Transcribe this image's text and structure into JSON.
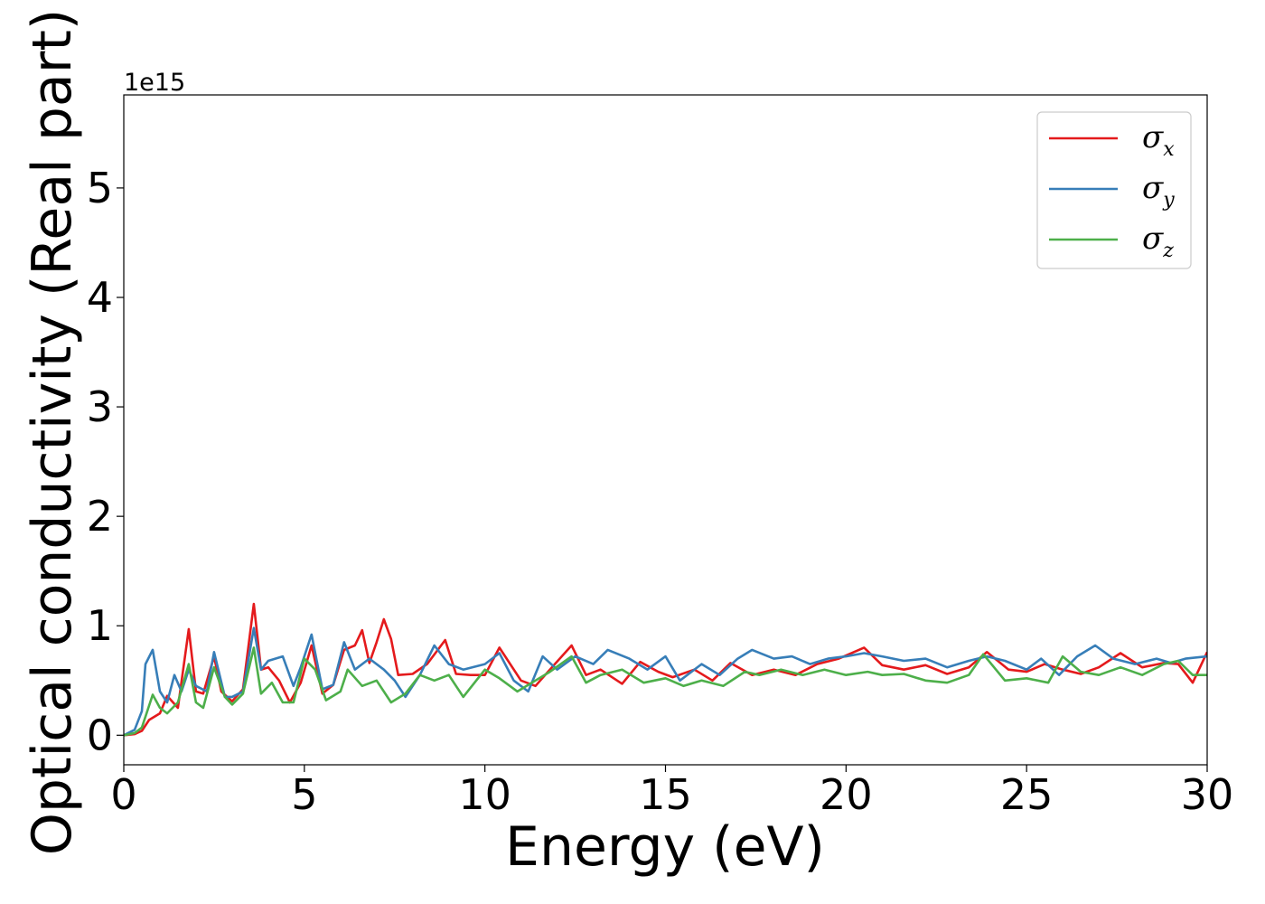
{
  "chart_data": {
    "type": "line",
    "xlabel": "Energy (eV)",
    "ylabel": "Optical conductivity (Real part)",
    "y_offset_text": "1e15",
    "y_scale": 1000000000000000.0,
    "xlim": [
      0,
      30
    ],
    "ylim": [
      -0.27,
      5.85
    ],
    "x_ticks": [
      0,
      5,
      10,
      15,
      20,
      25,
      30
    ],
    "x_tick_labels": [
      "0",
      "5",
      "10",
      "15",
      "20",
      "25",
      "30"
    ],
    "y_ticks": [
      0,
      1,
      2,
      3,
      4,
      5
    ],
    "y_tick_labels": [
      "0",
      "1",
      "2",
      "3",
      "4",
      "5"
    ],
    "grid": false,
    "legend": {
      "placement": "top-right"
    },
    "series": [
      {
        "name": "σx",
        "symbol": "σ",
        "subscript": "x",
        "color": "#e41a1c",
        "points": [
          [
            0,
            0
          ],
          [
            0.3,
            0.01
          ],
          [
            0.5,
            0.04
          ],
          [
            0.7,
            0.14
          ],
          [
            1,
            0.2
          ],
          [
            1.2,
            0.36
          ],
          [
            1.5,
            0.25
          ],
          [
            1.8,
            0.97
          ],
          [
            2,
            0.4
          ],
          [
            2.2,
            0.38
          ],
          [
            2.5,
            0.72
          ],
          [
            2.7,
            0.4
          ],
          [
            3,
            0.31
          ],
          [
            3.3,
            0.42
          ],
          [
            3.6,
            1.2
          ],
          [
            3.8,
            0.6
          ],
          [
            4,
            0.62
          ],
          [
            4.3,
            0.5
          ],
          [
            4.6,
            0.3
          ],
          [
            4.9,
            0.48
          ],
          [
            5.2,
            0.82
          ],
          [
            5.5,
            0.38
          ],
          [
            5.8,
            0.46
          ],
          [
            6.1,
            0.78
          ],
          [
            6.4,
            0.82
          ],
          [
            6.6,
            0.96
          ],
          [
            6.8,
            0.66
          ],
          [
            7,
            0.85
          ],
          [
            7.2,
            1.06
          ],
          [
            7.4,
            0.88
          ],
          [
            7.6,
            0.55
          ],
          [
            8,
            0.56
          ],
          [
            8.4,
            0.65
          ],
          [
            8.9,
            0.87
          ],
          [
            9.2,
            0.56
          ],
          [
            9.6,
            0.55
          ],
          [
            10,
            0.55
          ],
          [
            10.4,
            0.8
          ],
          [
            11,
            0.5
          ],
          [
            11.4,
            0.45
          ],
          [
            11.8,
            0.6
          ],
          [
            12.4,
            0.82
          ],
          [
            12.8,
            0.55
          ],
          [
            13.2,
            0.6
          ],
          [
            13.8,
            0.47
          ],
          [
            14.3,
            0.67
          ],
          [
            14.8,
            0.58
          ],
          [
            15.2,
            0.53
          ],
          [
            15.8,
            0.6
          ],
          [
            16.3,
            0.5
          ],
          [
            16.8,
            0.66
          ],
          [
            17.4,
            0.55
          ],
          [
            18,
            0.6
          ],
          [
            18.6,
            0.55
          ],
          [
            19.2,
            0.65
          ],
          [
            19.8,
            0.7
          ],
          [
            20.5,
            0.8
          ],
          [
            21,
            0.64
          ],
          [
            21.6,
            0.6
          ],
          [
            22.2,
            0.64
          ],
          [
            22.8,
            0.56
          ],
          [
            23.4,
            0.62
          ],
          [
            23.9,
            0.76
          ],
          [
            24.5,
            0.6
          ],
          [
            25,
            0.58
          ],
          [
            25.5,
            0.65
          ],
          [
            26,
            0.6
          ],
          [
            26.5,
            0.56
          ],
          [
            27,
            0.62
          ],
          [
            27.6,
            0.75
          ],
          [
            28.2,
            0.62
          ],
          [
            28.8,
            0.66
          ],
          [
            29.2,
            0.65
          ],
          [
            29.6,
            0.48
          ],
          [
            30,
            0.76
          ]
        ]
      },
      {
        "name": "σy",
        "symbol": "σ",
        "subscript": "y",
        "color": "#377eb8",
        "points": [
          [
            0,
            0
          ],
          [
            0.3,
            0.05
          ],
          [
            0.5,
            0.22
          ],
          [
            0.6,
            0.65
          ],
          [
            0.8,
            0.78
          ],
          [
            1,
            0.4
          ],
          [
            1.2,
            0.3
          ],
          [
            1.4,
            0.55
          ],
          [
            1.6,
            0.4
          ],
          [
            1.8,
            0.6
          ],
          [
            2,
            0.45
          ],
          [
            2.3,
            0.4
          ],
          [
            2.5,
            0.76
          ],
          [
            2.8,
            0.35
          ],
          [
            3,
            0.35
          ],
          [
            3.3,
            0.4
          ],
          [
            3.6,
            0.98
          ],
          [
            3.8,
            0.6
          ],
          [
            4,
            0.68
          ],
          [
            4.4,
            0.72
          ],
          [
            4.7,
            0.45
          ],
          [
            4.9,
            0.62
          ],
          [
            5.2,
            0.92
          ],
          [
            5.5,
            0.42
          ],
          [
            5.8,
            0.46
          ],
          [
            6.1,
            0.85
          ],
          [
            6.4,
            0.6
          ],
          [
            6.8,
            0.7
          ],
          [
            7.2,
            0.6
          ],
          [
            7.5,
            0.5
          ],
          [
            7.8,
            0.35
          ],
          [
            8.2,
            0.55
          ],
          [
            8.6,
            0.82
          ],
          [
            9,
            0.65
          ],
          [
            9.4,
            0.6
          ],
          [
            10,
            0.65
          ],
          [
            10.4,
            0.75
          ],
          [
            10.8,
            0.5
          ],
          [
            11.2,
            0.4
          ],
          [
            11.6,
            0.72
          ],
          [
            12,
            0.6
          ],
          [
            12.5,
            0.72
          ],
          [
            13,
            0.65
          ],
          [
            13.4,
            0.78
          ],
          [
            14,
            0.7
          ],
          [
            14.5,
            0.6
          ],
          [
            15,
            0.72
          ],
          [
            15.4,
            0.5
          ],
          [
            16,
            0.65
          ],
          [
            16.5,
            0.55
          ],
          [
            17,
            0.7
          ],
          [
            17.4,
            0.78
          ],
          [
            18,
            0.7
          ],
          [
            18.5,
            0.72
          ],
          [
            19,
            0.65
          ],
          [
            19.5,
            0.7
          ],
          [
            20,
            0.72
          ],
          [
            20.5,
            0.75
          ],
          [
            21,
            0.72
          ],
          [
            21.6,
            0.68
          ],
          [
            22.2,
            0.7
          ],
          [
            22.8,
            0.62
          ],
          [
            23.4,
            0.68
          ],
          [
            23.9,
            0.72
          ],
          [
            24.4,
            0.68
          ],
          [
            25,
            0.6
          ],
          [
            25.4,
            0.7
          ],
          [
            25.9,
            0.55
          ],
          [
            26.4,
            0.72
          ],
          [
            26.9,
            0.82
          ],
          [
            27.4,
            0.7
          ],
          [
            28,
            0.65
          ],
          [
            28.6,
            0.7
          ],
          [
            29,
            0.66
          ],
          [
            29.4,
            0.7
          ],
          [
            30,
            0.72
          ]
        ]
      },
      {
        "name": "σz",
        "symbol": "σ",
        "subscript": "z",
        "color": "#4daf4a",
        "points": [
          [
            0,
            0
          ],
          [
            0.3,
            0.02
          ],
          [
            0.5,
            0.07
          ],
          [
            0.8,
            0.37
          ],
          [
            1,
            0.25
          ],
          [
            1.2,
            0.2
          ],
          [
            1.5,
            0.3
          ],
          [
            1.8,
            0.65
          ],
          [
            2,
            0.3
          ],
          [
            2.2,
            0.25
          ],
          [
            2.5,
            0.62
          ],
          [
            2.8,
            0.35
          ],
          [
            3,
            0.28
          ],
          [
            3.3,
            0.38
          ],
          [
            3.6,
            0.8
          ],
          [
            3.8,
            0.38
          ],
          [
            4.1,
            0.48
          ],
          [
            4.4,
            0.3
          ],
          [
            4.7,
            0.3
          ],
          [
            5,
            0.7
          ],
          [
            5.3,
            0.6
          ],
          [
            5.6,
            0.32
          ],
          [
            6,
            0.4
          ],
          [
            6.2,
            0.6
          ],
          [
            6.6,
            0.45
          ],
          [
            7,
            0.5
          ],
          [
            7.4,
            0.3
          ],
          [
            7.8,
            0.38
          ],
          [
            8.2,
            0.55
          ],
          [
            8.6,
            0.5
          ],
          [
            9,
            0.55
          ],
          [
            9.4,
            0.35
          ],
          [
            10,
            0.6
          ],
          [
            10.4,
            0.52
          ],
          [
            10.9,
            0.4
          ],
          [
            11.4,
            0.5
          ],
          [
            11.8,
            0.58
          ],
          [
            12.4,
            0.72
          ],
          [
            12.8,
            0.48
          ],
          [
            13.2,
            0.55
          ],
          [
            13.8,
            0.6
          ],
          [
            14.4,
            0.48
          ],
          [
            15,
            0.52
          ],
          [
            15.5,
            0.45
          ],
          [
            16,
            0.5
          ],
          [
            16.6,
            0.45
          ],
          [
            17.2,
            0.58
          ],
          [
            17.6,
            0.55
          ],
          [
            18.2,
            0.6
          ],
          [
            18.8,
            0.55
          ],
          [
            19.4,
            0.6
          ],
          [
            20,
            0.55
          ],
          [
            20.6,
            0.58
          ],
          [
            21,
            0.55
          ],
          [
            21.6,
            0.56
          ],
          [
            22.2,
            0.5
          ],
          [
            22.8,
            0.48
          ],
          [
            23.4,
            0.55
          ],
          [
            23.8,
            0.74
          ],
          [
            24.4,
            0.5
          ],
          [
            25,
            0.52
          ],
          [
            25.6,
            0.48
          ],
          [
            26,
            0.72
          ],
          [
            26.5,
            0.58
          ],
          [
            27,
            0.55
          ],
          [
            27.6,
            0.62
          ],
          [
            28.2,
            0.55
          ],
          [
            28.8,
            0.65
          ],
          [
            29.2,
            0.68
          ],
          [
            29.6,
            0.55
          ],
          [
            30,
            0.55
          ]
        ]
      }
    ]
  }
}
